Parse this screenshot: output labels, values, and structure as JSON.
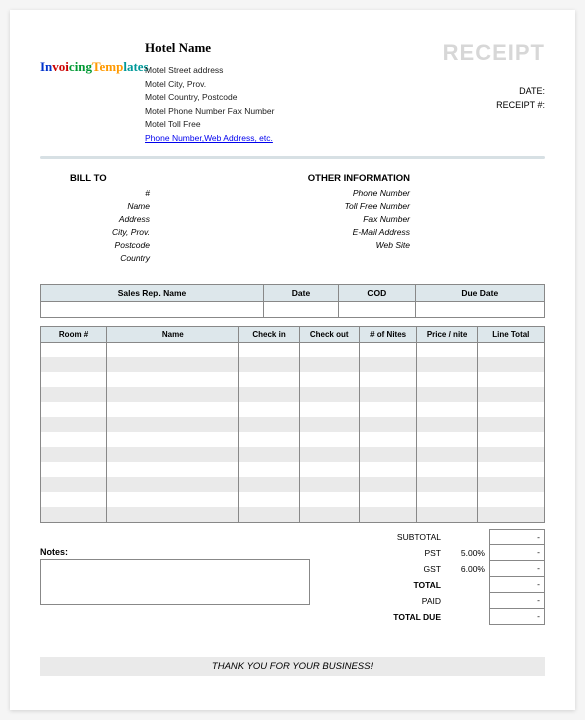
{
  "logo": {
    "text": "InvoicingTemplates"
  },
  "hotel": {
    "name": "Hotel Name",
    "addr1": "Motel Street address",
    "addr2": "Motel City, Prov.",
    "addr3": "Motel Country, Postcode",
    "addr4": "Motel Phone Number   Fax Number",
    "addr5": "Motel Toll Free",
    "link": "Phone Number,Web Address, etc."
  },
  "receipt": {
    "title": "RECEIPT",
    "date_label": "DATE:",
    "num_label": "RECEIPT #:"
  },
  "billto": {
    "title": "BILL TO",
    "lines": [
      "#",
      "Name",
      "Address",
      "City, Prov.",
      "Postcode",
      "Country"
    ]
  },
  "otherinfo": {
    "title": "OTHER INFORMATION",
    "lines": [
      "Phone Number",
      "Toll Free Number",
      "Fax Number",
      "E-Mail Address",
      "Web Site"
    ]
  },
  "meta_headers": [
    "Sales Rep. Name",
    "Date",
    "COD",
    "Due Date"
  ],
  "item_headers": [
    "Room #",
    "Name",
    "Check in",
    "Check out",
    "# of Nites",
    "Price / nite",
    "Line Total"
  ],
  "item_widths": [
    "55px",
    "110px",
    "50px",
    "50px",
    "48px",
    "50px",
    "56px"
  ],
  "num_item_rows": 12,
  "totals": {
    "subtotal": {
      "label": "SUBTOTAL",
      "value": "-"
    },
    "pst": {
      "label": "PST",
      "pct": "5.00%",
      "value": "-"
    },
    "gst": {
      "label": "GST",
      "pct": "6.00%",
      "value": "-"
    },
    "total": {
      "label": "TOTAL",
      "value": "-"
    },
    "paid": {
      "label": "PAID",
      "value": "-"
    },
    "due": {
      "label": "TOTAL DUE",
      "value": "-"
    }
  },
  "notes_label": "Notes:",
  "thankyou": "THANK YOU FOR YOUR BUSINESS!",
  "colors": {
    "header_bg": "#dde7eb",
    "alt_row": "#eaeaea",
    "border": "#888888",
    "receipt_title": "#d7d7d7"
  }
}
